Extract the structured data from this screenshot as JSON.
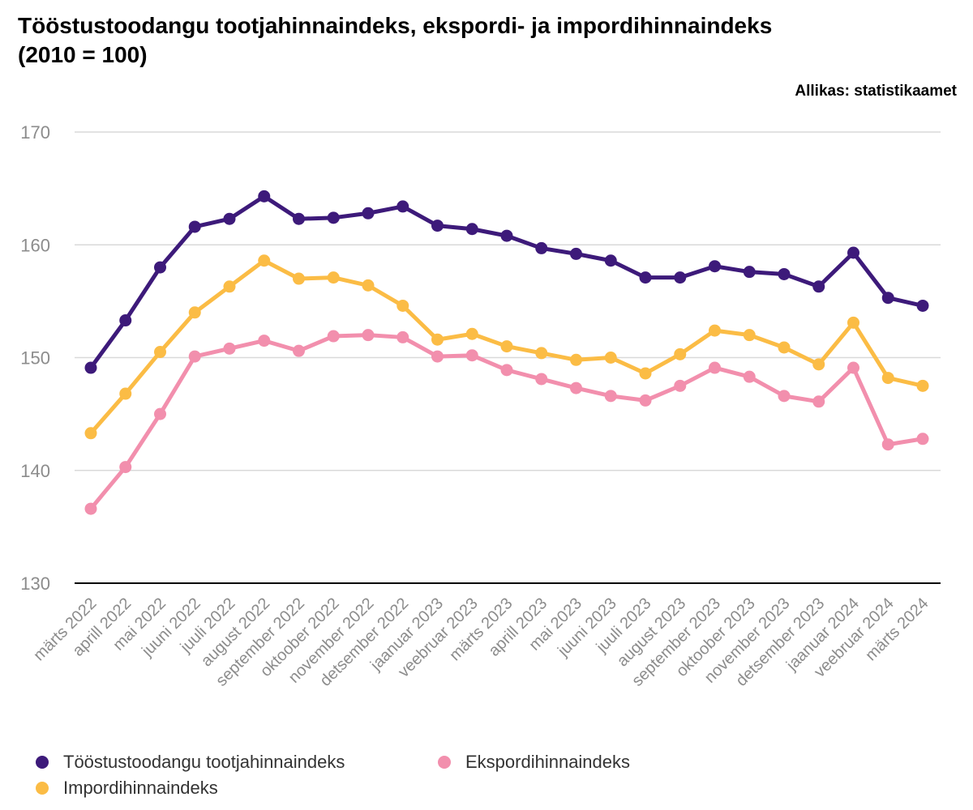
{
  "title_line1": "Tööstustoodangu tootjahinnaindeks, ekspordi- ja impordihinnaindeks",
  "title_line2": "(2010 = 100)",
  "source": "Allikas: statistikaamet",
  "chart_data": {
    "type": "line",
    "title": "Tööstustoodangu tootjahinnaindeks, ekspordi- ja impordihinnaindeks (2010 = 100)",
    "categories": [
      "märts 2022",
      "aprill 2022",
      "mai 2022",
      "juuni 2022",
      "juuli 2022",
      "august 2022",
      "september 2022",
      "oktoober 2022",
      "november 2022",
      "detsember 2022",
      "jaanuar 2023",
      "veebruar 2023",
      "märts 2023",
      "aprill 2023",
      "mai 2023",
      "juuni 2023",
      "juuli 2023",
      "august 2023",
      "september 2023",
      "oktoober 2023",
      "november 2023",
      "detsember 2023",
      "jaanuar 2024",
      "veebruar 2024",
      "märts 2024"
    ],
    "ylim": [
      130,
      170
    ],
    "yticks": [
      130,
      140,
      150,
      160,
      170
    ],
    "grid": true,
    "legend_position": "bottom",
    "series": [
      {
        "name": "Tööstustoodangu tootjahinnaindeks",
        "color": "#3d1a7a",
        "values": [
          149.1,
          153.3,
          158.0,
          161.6,
          162.3,
          164.3,
          162.3,
          162.4,
          162.8,
          163.4,
          161.7,
          161.4,
          160.8,
          159.7,
          159.2,
          158.6,
          157.1,
          157.1,
          158.1,
          157.6,
          157.4,
          156.3,
          159.3,
          155.3,
          154.6
        ]
      },
      {
        "name": "Impordihinnaindeks",
        "color": "#fbbc45",
        "values": [
          143.3,
          146.8,
          150.5,
          154.0,
          156.3,
          158.6,
          157.0,
          157.1,
          156.4,
          154.6,
          151.6,
          152.1,
          151.0,
          150.4,
          149.8,
          150.0,
          148.6,
          150.3,
          152.4,
          152.0,
          150.9,
          149.4,
          153.1,
          148.2,
          147.5
        ]
      },
      {
        "name": "Ekspordihinnaindeks",
        "color": "#f28fad",
        "values": [
          136.6,
          140.3,
          145.0,
          150.1,
          150.8,
          151.5,
          150.6,
          151.9,
          152.0,
          151.8,
          150.1,
          150.2,
          148.9,
          148.1,
          147.3,
          146.6,
          146.2,
          147.5,
          149.1,
          148.3,
          146.6,
          146.1,
          149.1,
          142.3,
          142.8
        ]
      }
    ]
  },
  "legend": [
    {
      "label": "Tööstustoodangu tootjahinnaindeks",
      "color": "#3d1a7a"
    },
    {
      "label": "Ekspordihinnaindeks",
      "color": "#f28fad"
    },
    {
      "label": "Impordihinnaindeks",
      "color": "#fbbc45"
    }
  ]
}
